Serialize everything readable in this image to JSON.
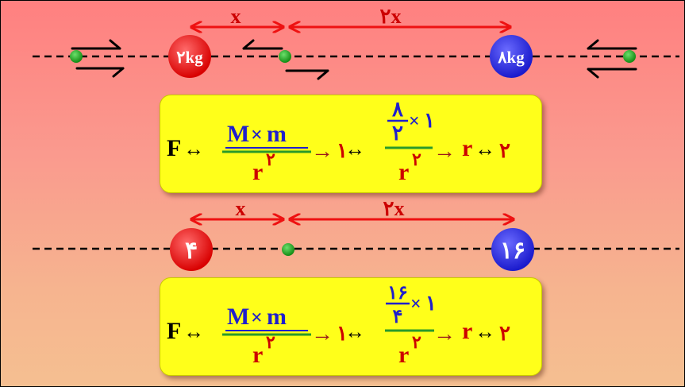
{
  "top": {
    "mass_left": "۲kg",
    "mass_right": "۸kg",
    "dist_left": "x",
    "dist_right": "۲x"
  },
  "formula_top": {
    "F": "F",
    "rel": "↔",
    "num_M": "M",
    "num_times": "×",
    "num_m": "m",
    "den_r": "r",
    "den_exp": "۲",
    "arrow": "→",
    "one": "۱",
    "inner_num": "۸",
    "inner_den": "۲",
    "inner_times": "×",
    "inner_one": "۱",
    "den2_r": "r",
    "den2_exp": "۲",
    "result_r": "r",
    "result_rel": "↔",
    "result_val": "۲"
  },
  "bottom": {
    "mass_left": "۴",
    "mass_right": "۱۶",
    "dist_left": "x",
    "dist_right": "۲x"
  },
  "formula_bottom": {
    "F": "F",
    "rel": "↔",
    "num_M": "M",
    "num_times": "×",
    "num_m": "m",
    "den_r": "r",
    "den_exp": "۲",
    "arrow": "→",
    "one": "۱",
    "inner_num": "۱۶",
    "inner_den": "۴",
    "inner_times": "×",
    "inner_one": "۱",
    "den2_r": "r",
    "den2_exp": "۲",
    "result_r": "r",
    "result_rel": "↔",
    "result_val": "۲"
  },
  "colors": {
    "red_mass": "#ee1111",
    "blue_mass": "#2222dd",
    "green_point": "#22aa22",
    "dimension": "#ee1111",
    "formula_black": "#000000",
    "formula_blue": "#1f1fcc",
    "formula_red": "#cc0000",
    "fraction_bar": "#2a9a2a",
    "arrow_brown": "#991a1a",
    "box_fill": "#ffff1a"
  }
}
